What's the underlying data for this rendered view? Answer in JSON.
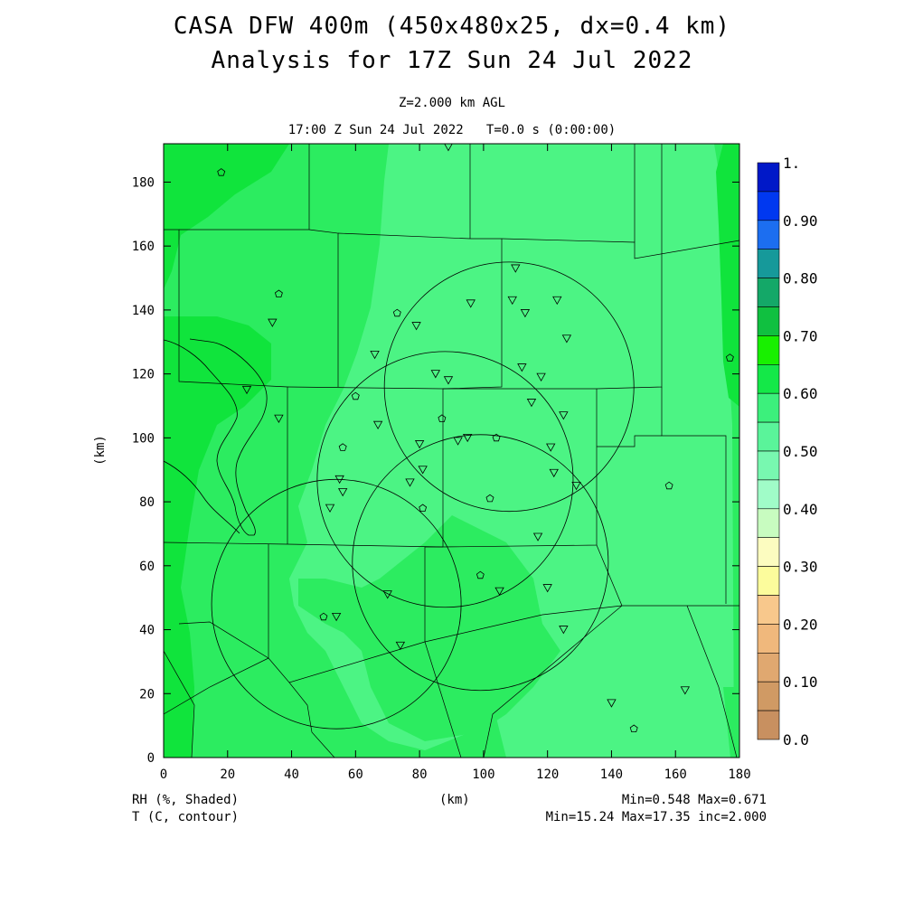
{
  "header": {
    "title_line1": "CASA DFW 400m (450x480x25, dx=0.4 km)",
    "title_line2": "Analysis for 17Z Sun 24 Jul 2022",
    "level": "Z=2.000 km AGL",
    "time": "17:00 Z Sun 24 Jul 2022   T=0.0 s (0:00:00)"
  },
  "axes": {
    "xlabel": "(km)",
    "ylabel": "(km)",
    "x_ticks": [
      "0",
      "20",
      "40",
      "60",
      "80",
      "100",
      "120",
      "140",
      "160",
      "180"
    ],
    "y_ticks": [
      "0",
      "20",
      "40",
      "60",
      "80",
      "100",
      "120",
      "140",
      "160",
      "180"
    ],
    "xlim": [
      0,
      180
    ],
    "ylim": [
      0,
      192
    ]
  },
  "colorbar": {
    "labels": [
      "1.",
      "0.90",
      "0.80",
      "0.70",
      "0.60",
      "0.50",
      "0.40",
      "0.30",
      "0.20",
      "0.10",
      "0.0"
    ],
    "colors": [
      "#0018c8",
      "#0038f0",
      "#1c6ef0",
      "#16999a",
      "#14a868",
      "#10c040",
      "#18f000",
      "#14e848",
      "#3cf07c",
      "#5af49a",
      "#78f8b0",
      "#a0fcc8",
      "#c8fcc0",
      "#fcfcc0",
      "#fcfc9c",
      "#f8c88c",
      "#f0b87c",
      "#e0a870",
      "#d09a64",
      "#c89060"
    ]
  },
  "footer": {
    "left1": "RH (%, Shaded)",
    "left2": "T (C, contour)",
    "center": "(km)",
    "right1": "Min=0.548 Max=0.671",
    "right2": "Min=15.24 Max=17.35 inc=2.000"
  },
  "map_data": {
    "colors": {
      "light": "#4cf484",
      "mid": "#2cec60",
      "dark": "#10e43c"
    },
    "radar_rings_km": [
      {
        "cx": 88,
        "cy": 87,
        "r": 40
      },
      {
        "cx": 108,
        "cy": 116,
        "r": 39
      },
      {
        "cx": 99,
        "cy": 61,
        "r": 40
      },
      {
        "cx": 54,
        "cy": 48,
        "r": 39
      }
    ],
    "stations_triangle_km": [
      [
        89,
        191
      ],
      [
        110,
        153
      ],
      [
        96,
        142
      ],
      [
        109,
        143
      ],
      [
        113,
        139
      ],
      [
        123,
        143
      ],
      [
        126,
        131
      ],
      [
        34,
        136
      ],
      [
        79,
        135
      ],
      [
        66,
        126
      ],
      [
        85,
        120
      ],
      [
        89,
        118
      ],
      [
        112,
        122
      ],
      [
        118,
        119
      ],
      [
        26,
        115
      ],
      [
        115,
        111
      ],
      [
        125,
        107
      ],
      [
        36,
        106
      ],
      [
        67,
        104
      ],
      [
        92,
        99
      ],
      [
        95,
        100
      ],
      [
        80,
        98
      ],
      [
        121,
        97
      ],
      [
        81,
        90
      ],
      [
        122,
        89
      ],
      [
        55,
        87
      ],
      [
        77,
        86
      ],
      [
        129,
        85
      ],
      [
        56,
        83
      ],
      [
        52,
        78
      ],
      [
        117,
        69
      ],
      [
        120,
        53
      ],
      [
        70,
        51
      ],
      [
        105,
        52
      ],
      [
        54,
        44
      ],
      [
        125,
        40
      ],
      [
        74,
        35
      ],
      [
        140,
        17
      ],
      [
        163,
        21
      ]
    ],
    "stations_pentagon_km": [
      [
        18,
        183
      ],
      [
        36,
        145
      ],
      [
        73,
        139
      ],
      [
        60,
        113
      ],
      [
        87,
        106
      ],
      [
        56,
        97
      ],
      [
        104,
        100
      ],
      [
        102,
        81
      ],
      [
        81,
        78
      ],
      [
        99,
        57
      ],
      [
        50,
        44
      ],
      [
        158,
        85
      ],
      [
        177,
        125
      ],
      [
        147,
        9
      ]
    ]
  }
}
